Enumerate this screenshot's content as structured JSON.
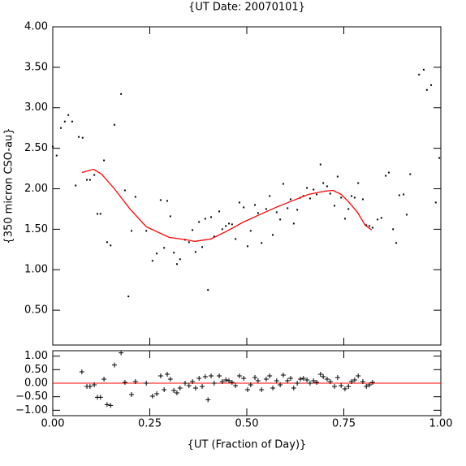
{
  "chart_data": [
    {
      "type": "scatter",
      "title": "{UT Date: 20070101}",
      "ylabel": "{350 micron CSO-au}",
      "xlim": [
        0,
        1
      ],
      "ylim": [
        0.07,
        4.0
      ],
      "show_xtick_labels": false,
      "xticks": [
        0,
        0.25,
        0.5,
        0.75,
        1
      ],
      "yticks": [
        {
          "value": 0.5,
          "label": "0.50"
        },
        {
          "value": 1,
          "label": "1.00"
        },
        {
          "value": 1.5,
          "label": "1.50"
        },
        {
          "value": 2,
          "label": "2.00"
        },
        {
          "value": 2.5,
          "label": "2.50"
        },
        {
          "value": 3,
          "label": "3.00"
        },
        {
          "value": 3.5,
          "label": "3.50"
        },
        {
          "value": 4,
          "label": "4.00"
        }
      ],
      "series": [
        {
          "mode": "points",
          "color": "#000000",
          "x": [
            0.0,
            0.01,
            0.021,
            0.031,
            0.04,
            0.05,
            0.059,
            0.067,
            0.077,
            0.088,
            0.096,
            0.107,
            0.115,
            0.123,
            0.132,
            0.14,
            0.149,
            0.159,
            0.176,
            0.186,
            0.195,
            0.203,
            0.213,
            0.241,
            0.257,
            0.268,
            0.278,
            0.287,
            0.295,
            0.303,
            0.312,
            0.32,
            0.328,
            0.341,
            0.351,
            0.36,
            0.368,
            0.377,
            0.385,
            0.393,
            0.4,
            0.408,
            0.416,
            0.429,
            0.437,
            0.446,
            0.454,
            0.462,
            0.471,
            0.481,
            0.492,
            0.502,
            0.51,
            0.521,
            0.529,
            0.538,
            0.55,
            0.559,
            0.567,
            0.577,
            0.586,
            0.594,
            0.605,
            0.613,
            0.621,
            0.63,
            0.638,
            0.646,
            0.655,
            0.663,
            0.672,
            0.68,
            0.69,
            0.697,
            0.707,
            0.715,
            0.726,
            0.734,
            0.743,
            0.753,
            0.762,
            0.77,
            0.778,
            0.787,
            0.799,
            0.808,
            0.816,
            0.824,
            0.837,
            0.847,
            0.858,
            0.866,
            0.877,
            0.885,
            0.893,
            0.904,
            0.912,
            0.921,
            0.944,
            0.956,
            0.964,
            0.975,
            0.987,
            0.996
          ],
          "values": [
            2.52,
            2.41,
            2.75,
            2.83,
            2.91,
            2.83,
            2.04,
            2.64,
            2.63,
            2.11,
            2.11,
            2.17,
            1.69,
            1.69,
            2.35,
            1.34,
            1.3,
            2.79,
            3.17,
            1.98,
            0.67,
            1.48,
            1.9,
            1.48,
            1.11,
            1.2,
            1.86,
            1.27,
            1.85,
            1.66,
            1.21,
            1.07,
            1.13,
            1.37,
            1.34,
            1.49,
            1.22,
            1.59,
            1.28,
            1.63,
            0.75,
            1.65,
            1.41,
            1.72,
            1.5,
            1.54,
            1.57,
            1.56,
            1.38,
            1.83,
            1.77,
            1.29,
            1.48,
            1.8,
            1.7,
            1.33,
            1.75,
            1.91,
            1.43,
            1.71,
            1.62,
            2.06,
            1.76,
            1.87,
            1.57,
            1.74,
            1.89,
            1.91,
            2.01,
            1.88,
            1.99,
            1.93,
            2.3,
            2.07,
            2.03,
            1.94,
            1.79,
            2.15,
            1.89,
            1.63,
            1.75,
            1.91,
            1.89,
            2.07,
            1.87,
            1.55,
            1.54,
            1.52,
            1.62,
            1.64,
            2.16,
            2.2,
            1.5,
            1.33,
            1.92,
            1.93,
            1.68,
            2.18,
            3.41,
            3.47,
            3.22,
            3.28,
            1.83,
            2.38
          ]
        },
        {
          "mode": "line",
          "color": "#ff0000",
          "x": [
            0.075,
            0.105,
            0.126,
            0.157,
            0.199,
            0.241,
            0.3,
            0.345,
            0.366,
            0.408,
            0.45,
            0.492,
            0.533,
            0.575,
            0.617,
            0.659,
            0.701,
            0.722,
            0.743,
            0.764,
            0.785,
            0.805,
            0.822
          ],
          "values": [
            2.2,
            2.24,
            2.18,
            2.01,
            1.75,
            1.53,
            1.4,
            1.37,
            1.35,
            1.38,
            1.48,
            1.59,
            1.68,
            1.77,
            1.85,
            1.93,
            1.97,
            1.98,
            1.93,
            1.83,
            1.71,
            1.55,
            1.49
          ]
        }
      ]
    },
    {
      "type": "scatter",
      "xlabel": "{UT (Fraction of Day)}",
      "xlim": [
        0,
        1
      ],
      "ylim": [
        -1.2,
        1.2
      ],
      "show_xtick_labels": true,
      "xticks": [
        {
          "value": 0,
          "label": "0.00"
        },
        {
          "value": 0.25,
          "label": "0.25"
        },
        {
          "value": 0.5,
          "label": "0.50"
        },
        {
          "value": 0.75,
          "label": "0.75"
        },
        {
          "value": 1,
          "label": "1.00"
        }
      ],
      "yticks": [
        {
          "value": -1,
          "label": "−1.00"
        },
        {
          "value": -0.5,
          "label": "−0.50"
        },
        {
          "value": 0,
          "label": "0.00"
        },
        {
          "value": 0.5,
          "label": "0.50"
        },
        {
          "value": 1,
          "label": "1.00"
        }
      ],
      "hline": 0,
      "hline_color": "#ff0000",
      "series": [
        {
          "mode": "plus",
          "color": "#000000",
          "x": [
            0.075,
            0.088,
            0.096,
            0.107,
            0.115,
            0.123,
            0.132,
            0.14,
            0.149,
            0.159,
            0.176,
            0.186,
            0.203,
            0.213,
            0.241,
            0.257,
            0.268,
            0.278,
            0.287,
            0.295,
            0.303,
            0.312,
            0.32,
            0.328,
            0.341,
            0.351,
            0.36,
            0.368,
            0.377,
            0.385,
            0.393,
            0.4,
            0.408,
            0.416,
            0.429,
            0.437,
            0.446,
            0.454,
            0.462,
            0.471,
            0.481,
            0.492,
            0.502,
            0.51,
            0.521,
            0.529,
            0.538,
            0.55,
            0.559,
            0.567,
            0.577,
            0.586,
            0.594,
            0.605,
            0.613,
            0.621,
            0.63,
            0.638,
            0.646,
            0.655,
            0.663,
            0.672,
            0.68,
            0.69,
            0.697,
            0.707,
            0.715,
            0.726,
            0.734,
            0.743,
            0.753,
            0.762,
            0.77,
            0.778,
            0.787,
            0.799,
            0.808,
            0.816,
            0.824
          ],
          "values": [
            0.42,
            -0.12,
            -0.12,
            -0.06,
            -0.52,
            -0.52,
            0.15,
            -0.79,
            -0.82,
            0.67,
            1.12,
            0.03,
            -0.42,
            0.06,
            0.0,
            -0.48,
            -0.39,
            0.27,
            -0.24,
            0.33,
            0.15,
            -0.27,
            -0.36,
            -0.18,
            0.0,
            -0.09,
            0.06,
            -0.18,
            0.18,
            -0.12,
            0.24,
            -0.61,
            0.27,
            0.0,
            0.27,
            0.06,
            0.12,
            0.09,
            0.03,
            -0.09,
            0.27,
            0.18,
            -0.24,
            -0.06,
            0.21,
            0.09,
            -0.24,
            0.15,
            0.27,
            -0.18,
            0.09,
            -0.06,
            0.3,
            0.09,
            0.18,
            -0.18,
            0.0,
            0.15,
            0.18,
            0.12,
            0.0,
            0.09,
            0.03,
            0.33,
            0.24,
            0.15,
            0.06,
            -0.12,
            0.21,
            -0.09,
            -0.21,
            -0.12,
            0.06,
            0.12,
            0.27,
            0.06,
            -0.12,
            -0.06,
            0.03
          ]
        }
      ]
    }
  ]
}
